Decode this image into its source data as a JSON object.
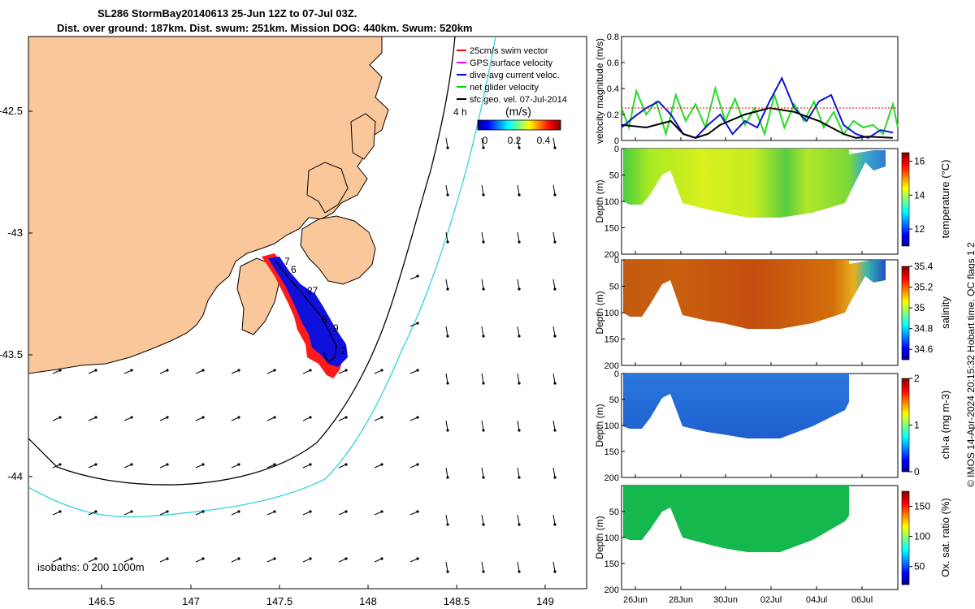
{
  "title_line1": "SL286 StormBay20140613 25-Jun 12Z to 07-Jul 03Z.",
  "title_line2": "Dist. over ground: 187km. Dist. swum: 251km. Mission DOG: 440km. Swum: 520km",
  "credit": "© IMOS 14-Apr-2024 20:15:32 Hobart time. QC flags 1  2",
  "map": {
    "isobath_label": "isobaths: 0   200  1000m",
    "legend": [
      {
        "label": "25cm/s swim vector",
        "color": "#ff0000"
      },
      {
        "label": "GPS surface velocity",
        "color": "#ff00ff"
      },
      {
        "label": "dive-avg current veloc.",
        "color": "#0000ff"
      },
      {
        "label": "net glider velocity",
        "color": "#00dd00"
      },
      {
        "label": "sfc geo. vel. 07-Jul-2014",
        "color": "#000000"
      }
    ],
    "colorbar_title": "(m/s)",
    "colorbar_ticks": [
      "0",
      "0.2",
      "0.4"
    ],
    "hour_label": "4 h",
    "day_labels": [
      "7",
      "6",
      "27",
      "9",
      "5",
      "2"
    ],
    "colors": {
      "land": "#f9c79a",
      "sea": "#ffffff",
      "isobath200": "#000000",
      "isobath1000": "#33d4dc"
    }
  },
  "chart_data": [
    {
      "type": "line",
      "title": "",
      "ylabel": "velocity magnitude (m/s)",
      "ylim": [
        0,
        0.8
      ],
      "yticks": [
        "0",
        "0.2",
        "0.4",
        "0.6",
        "0.8"
      ],
      "xlim": [
        "25-Jun 12Z",
        "07-Jul 03Z"
      ],
      "series": [
        {
          "color": "#22dd22",
          "x": [
            0,
            0.3,
            0.6,
            1,
            1.4,
            1.8,
            2.2,
            2.6,
            3,
            3.4,
            3.8,
            4.2,
            4.6,
            5,
            5.4,
            5.8,
            6.2,
            6.6,
            7,
            7.4,
            7.8,
            8.2,
            8.6,
            9,
            9.4,
            9.8,
            10.2,
            10.6,
            11,
            11.2
          ],
          "values": [
            0.25,
            0.1,
            0.38,
            0.2,
            0.3,
            0.05,
            0.35,
            0.15,
            0.28,
            0.1,
            0.4,
            0.15,
            0.32,
            0.12,
            0.25,
            0.05,
            0.35,
            0.1,
            0.28,
            0.15,
            0.3,
            0.1,
            0.22,
            0.05,
            0.15,
            0.1,
            0.12,
            0.05,
            0.28,
            0.1
          ]
        },
        {
          "color": "#1010dd",
          "x": [
            0,
            0.5,
            1,
            1.5,
            2,
            2.5,
            3,
            3.5,
            4,
            4.5,
            5,
            5.5,
            6,
            6.5,
            7,
            7.5,
            8,
            8.5,
            9,
            9.5,
            10,
            10.5,
            11
          ],
          "values": [
            0.1,
            0.18,
            0.25,
            0.3,
            0.2,
            0.05,
            0.02,
            0.12,
            0.2,
            0.05,
            0.15,
            0.1,
            0.3,
            0.48,
            0.25,
            0.15,
            0.3,
            0.35,
            0.12,
            0.05,
            0.02,
            0.08,
            0.06
          ]
        },
        {
          "color": "#000000",
          "x": [
            0,
            1,
            2,
            2.5,
            3,
            3.5,
            4,
            5,
            6,
            7,
            8,
            9,
            9.5,
            10,
            11
          ],
          "values": [
            0.12,
            0.1,
            0.15,
            0.05,
            0.02,
            0.05,
            0.12,
            0.2,
            0.25,
            0.22,
            0.15,
            0.05,
            0.02,
            0.03,
            0.02
          ]
        },
        {
          "color": "#ff2222",
          "dashed": true,
          "x": [
            0,
            11.2
          ],
          "values": [
            0.25,
            0.25
          ]
        }
      ]
    },
    {
      "type": "heatmap",
      "ylabel": "Depth (m)",
      "ylim": [
        200,
        0
      ],
      "yticks": [
        "0",
        "50",
        "100",
        "150",
        "200"
      ],
      "colorbar_label": "temperature (°C)",
      "colorbar_ticks": [
        "16",
        "14",
        "12"
      ],
      "colorbar_range": [
        11,
        16.5
      ]
    },
    {
      "type": "heatmap",
      "ylabel": "Depth (m)",
      "ylim": [
        200,
        0
      ],
      "yticks": [
        "0",
        "50",
        "100",
        "150",
        "200"
      ],
      "colorbar_label": "salinity",
      "colorbar_ticks": [
        "35.4",
        "35.2",
        "35",
        "34.8",
        "34.6"
      ],
      "colorbar_range": [
        34.5,
        35.4
      ]
    },
    {
      "type": "heatmap",
      "ylabel": "Depth (m)",
      "ylim": [
        200,
        0
      ],
      "yticks": [
        "0",
        "50",
        "100",
        "150",
        "200"
      ],
      "colorbar_label": "chl-a (mg m-3)",
      "colorbar_ticks": [
        "2",
        "1",
        "0"
      ],
      "colorbar_range": [
        0,
        2
      ]
    },
    {
      "type": "heatmap",
      "ylabel": "Depth (m)",
      "ylim": [
        200,
        0
      ],
      "yticks": [
        "50",
        "100",
        "150",
        "200"
      ],
      "colorbar_label": "Ox. sat. ratio (%)",
      "colorbar_ticks": [
        "150",
        "100",
        "50"
      ],
      "colorbar_range": [
        20,
        175
      ]
    }
  ],
  "time_axis": {
    "ticks": [
      "26Jun",
      "28Jun",
      "30Jun",
      "02Jul",
      "04Jul",
      "06Jul"
    ]
  },
  "map_axes": {
    "xticks": [
      "146.5",
      "147",
      "147.5",
      "148",
      "148.5",
      "149"
    ],
    "yticks": [
      "-42.5",
      "-43",
      "-43.5",
      "-44"
    ]
  }
}
